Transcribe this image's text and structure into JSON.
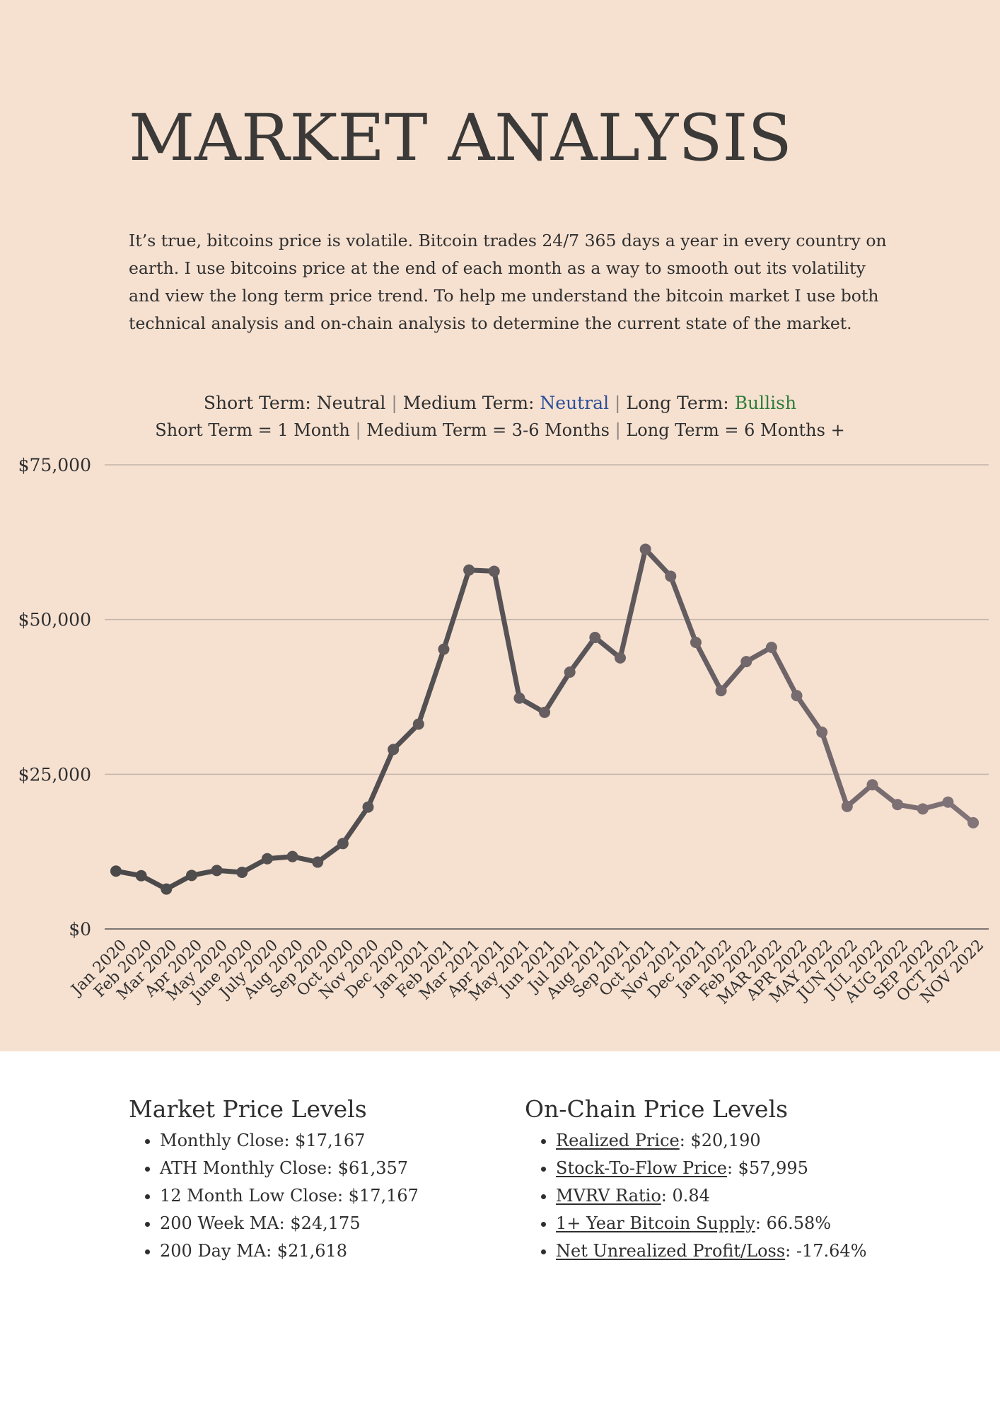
{
  "title": "MARKET ANALYSIS",
  "intro": "It’s true, bitcoins price is volatile. Bitcoin trades 24/7 365 days a year in every country on earth. I use bitcoins price at the end of each month as a way to smooth out its volatility and view the long term price trend. To help me understand the bitcoin market I use both technical analysis and on-chain analysis to determine the current state of the market.",
  "outlook": {
    "short_label": "Short Term: ",
    "short_value": "Neutral",
    "medium_label": "Medium Term: ",
    "medium_value": "Neutral",
    "long_label": "Long Term: ",
    "long_value": "Bullish",
    "short_def": "Short Term = 1 Month",
    "medium_def": "Medium Term = 3-6 Months",
    "long_def": "Long Term = 6 Months +",
    "separator": "|",
    "colors": {
      "neutral": "#2c4f99",
      "bullish": "#2e7d3a"
    }
  },
  "chart_data": {
    "type": "line",
    "title": "",
    "xlabel": "",
    "ylabel": "",
    "ylim": [
      0,
      75000
    ],
    "y_ticks": [
      0,
      25000,
      50000,
      75000
    ],
    "y_tick_labels": [
      "$0",
      "$25,000",
      "$50,000",
      "$75,000"
    ],
    "grid": true,
    "line_color_start": "#4a4848",
    "line_color_end": "#827478",
    "categories": [
      "Jan 2020",
      "Feb 2020",
      "Mar 2020",
      "Apr 2020",
      "May 2020",
      "June 2020",
      "July 2020",
      "Aug 2020",
      "Sep 2020",
      "Oct 2020",
      "Nov 2020",
      "Dec 2020",
      "Jan 2021",
      "Feb 2021",
      "Mar 2021",
      "Apr 2021",
      "May 2021",
      "Jun 2021",
      "Jul 2021",
      "Aug 2021",
      "Sep 2021",
      "Oct 2021",
      "Nov 2021",
      "Dec 2021",
      "Jan 2022",
      "Feb 2022",
      "MAR 2022",
      "APR 2022",
      "MAY 2022",
      "JUN 2022",
      "JUL 2022",
      "AUG 2022",
      "SEP 2022",
      "OCT 2022",
      "NOV 2022"
    ],
    "values": [
      9350,
      8600,
      6450,
      8650,
      9450,
      9150,
      11350,
      11700,
      10800,
      13800,
      19700,
      29000,
      33100,
      45200,
      58000,
      57800,
      37300,
      35000,
      41500,
      47100,
      43800,
      61357,
      57000,
      46300,
      38500,
      43200,
      45500,
      37700,
      31800,
      19800,
      23300,
      20100,
      19400,
      20500,
      17167
    ]
  },
  "market_levels": {
    "heading": "Market Price Levels",
    "items": [
      "Monthly Close: $17,167",
      "ATH Monthly Close: $61,357",
      "12 Month Low Close: $17,167",
      "200 Week MA: $24,175",
      "200 Day MA: $21,618"
    ]
  },
  "onchain_levels": {
    "heading": "On-Chain Price Levels",
    "items": [
      {
        "label": "Realized Price",
        "value": ": $20,190"
      },
      {
        "label": "Stock-To-Flow Price",
        "value": ": $57,995"
      },
      {
        "label": "MVRV Ratio",
        "value": ": 0.84"
      },
      {
        "label": "1+ Year Bitcoin Supply",
        "value": ": 66.58%"
      },
      {
        "label": "Net Unrealized Profit/Loss",
        "value": ": -17.64%"
      }
    ]
  }
}
